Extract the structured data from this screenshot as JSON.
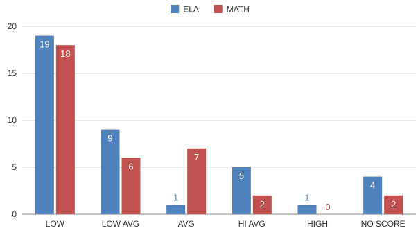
{
  "chart_data": {
    "type": "bar",
    "title": "",
    "xlabel": "",
    "ylabel": "",
    "categories": [
      "LOW",
      "LOW AVG",
      "AVG",
      "HI AVG",
      "HIGH",
      "NO SCORE"
    ],
    "series": [
      {
        "name": "ELA",
        "values": [
          19,
          9,
          1,
          5,
          1,
          4
        ],
        "color": "#4f81bd"
      },
      {
        "name": "MATH",
        "values": [
          18,
          6,
          7,
          2,
          0,
          2
        ],
        "color": "#c0504d"
      }
    ],
    "ylim": [
      0,
      20
    ],
    "yticks": [
      0,
      5,
      10,
      15,
      20
    ],
    "grid": true,
    "legend": "top-center",
    "data_label_colors": {
      "inside": "#ffffff"
    }
  }
}
